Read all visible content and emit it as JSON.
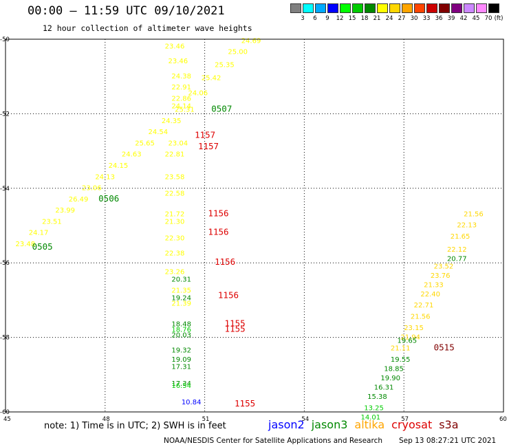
{
  "header": {
    "title": "00:00 – 11:59 UTC 09/10/2021",
    "subtitle": "12 hour collection of altimeter wave heights"
  },
  "colorbar": {
    "unit": "(ft)",
    "swatches": [
      "#808080",
      "#00ffff",
      "#00aaff",
      "#0000ff",
      "#00ff00",
      "#00cc00",
      "#008800",
      "#ffff00",
      "#ffd700",
      "#ffa500",
      "#ff4500",
      "#cc0000",
      "#800000",
      "#800080",
      "#cc88ff",
      "#ff88ff",
      "#000000"
    ],
    "labels": [
      "3",
      "6",
      "9",
      "12",
      "15",
      "18",
      "21",
      "24",
      "27",
      "30",
      "33",
      "36",
      "39",
      "42",
      "45",
      "70"
    ]
  },
  "map": {
    "lon_range": [
      45,
      60
    ],
    "lat_range": [
      -60,
      -50
    ],
    "lon_ticks": [
      "45",
      "48",
      "51",
      "54",
      "57",
      "60"
    ],
    "lat_ticks": [
      "-50",
      "-52",
      "-54",
      "-56",
      "-58",
      "-60"
    ]
  },
  "tracks": [
    {
      "color": "#ffff00",
      "points": [
        [
          45.3,
          -55.55,
          "23.48"
        ],
        [
          45.7,
          -55.25,
          "24.17"
        ],
        [
          46.1,
          -54.95,
          "23.51"
        ],
        [
          46.5,
          -54.65,
          "23.99"
        ],
        [
          46.9,
          -54.35,
          "26.49"
        ],
        [
          47.3,
          -54.05,
          "23.06"
        ],
        [
          47.7,
          -53.75,
          "24.13"
        ],
        [
          48.1,
          -53.45,
          "24.15"
        ],
        [
          48.5,
          -53.15,
          "24.63"
        ],
        [
          48.9,
          -52.85,
          "25.65"
        ],
        [
          49.3,
          -52.55,
          "24.54"
        ],
        [
          49.7,
          -52.25,
          "24.35"
        ],
        [
          50.1,
          -51.95,
          "25.31"
        ],
        [
          50.5,
          -51.5,
          "24.06"
        ],
        [
          50.9,
          -51.1,
          "25.42"
        ],
        [
          51.3,
          -50.75,
          "25.35"
        ],
        [
          51.7,
          -50.4,
          "25.00"
        ],
        [
          52.1,
          -50.1,
          "24.69"
        ]
      ]
    },
    {
      "color": "#ffff00",
      "points": [
        [
          49.8,
          -50.25,
          "23.46"
        ],
        [
          49.9,
          -50.65,
          "23.46"
        ],
        [
          50.0,
          -51.05,
          "24.38"
        ],
        [
          50.0,
          -51.35,
          "22.91"
        ],
        [
          50.0,
          -51.65,
          "22.86"
        ],
        [
          50.0,
          -51.85,
          "24.14"
        ],
        [
          49.9,
          -52.85,
          "23.04"
        ],
        [
          49.8,
          -53.15,
          "22.81"
        ]
      ]
    },
    {
      "color": "#ffff00",
      "points": [
        [
          49.8,
          -53.75,
          "23.58"
        ],
        [
          49.8,
          -54.2,
          "22.58"
        ],
        [
          49.8,
          -54.75,
          "21.72"
        ],
        [
          49.8,
          -54.95,
          "21.30"
        ],
        [
          49.8,
          -55.4,
          "22.30"
        ],
        [
          49.8,
          -55.8,
          "22.38"
        ],
        [
          49.8,
          -56.3,
          "23.26"
        ]
      ]
    },
    {
      "color": "#ffff00",
      "points": [
        [
          50.0,
          -56.8,
          "21.35"
        ],
        [
          50.0,
          -57.15,
          "21.39"
        ]
      ]
    },
    {
      "color": "#008800",
      "points": [
        [
          50.0,
          -56.5,
          "20.31"
        ],
        [
          50.0,
          -57.0,
          "19.24"
        ],
        [
          50.0,
          -57.7,
          "18.48"
        ],
        [
          50.0,
          -58.0,
          "20.03"
        ],
        [
          50.0,
          -58.4,
          "19.32"
        ],
        [
          50.0,
          -58.65,
          "19.09"
        ],
        [
          50.0,
          -58.85,
          "17.31"
        ],
        [
          50.0,
          -59.3,
          "17.34"
        ]
      ]
    },
    {
      "color": "#00cc00",
      "points": [
        [
          50.0,
          -59.35,
          "16.54"
        ],
        [
          50.0,
          -57.85,
          "18.76"
        ]
      ]
    },
    {
      "color": "#0000ff",
      "points": [
        [
          50.3,
          -59.8,
          "10.84"
        ]
      ]
    },
    {
      "color": "#ffd700",
      "points": [
        [
          58.8,
          -54.75,
          "21.56"
        ],
        [
          58.6,
          -55.05,
          "22.13"
        ],
        [
          58.4,
          -55.35,
          "21.65"
        ],
        [
          58.3,
          -55.7,
          "22.12"
        ],
        [
          57.9,
          -56.15,
          "23.52"
        ],
        [
          57.8,
          -56.4,
          "23.76"
        ],
        [
          57.6,
          -56.65,
          "21.33"
        ],
        [
          57.5,
          -56.9,
          "22.40"
        ],
        [
          57.3,
          -57.2,
          "22.71"
        ],
        [
          57.2,
          -57.5,
          "21.56"
        ],
        [
          57.0,
          -57.8,
          "23.15"
        ],
        [
          56.9,
          -58.05,
          "21.94"
        ],
        [
          56.6,
          -58.35,
          "21.11"
        ]
      ]
    },
    {
      "color": "#008800",
      "points": [
        [
          58.3,
          -55.95,
          "20.77"
        ],
        [
          56.8,
          -58.15,
          "19.65"
        ],
        [
          56.6,
          -58.65,
          "19.55"
        ],
        [
          56.4,
          -58.9,
          "18.85"
        ],
        [
          56.3,
          -59.15,
          "19.90"
        ],
        [
          56.1,
          -59.4,
          "16.31"
        ],
        [
          55.9,
          -59.65,
          "15.38"
        ]
      ]
    },
    {
      "color": "#00cc00",
      "points": [
        [
          55.8,
          -59.95,
          "13.25"
        ],
        [
          55.7,
          -60.2,
          "14.01"
        ]
      ]
    }
  ],
  "pass_labels": [
    {
      "text": "0505",
      "lon": 45.8,
      "lat": -55.65,
      "color": "#008800"
    },
    {
      "text": "0506",
      "lon": 47.8,
      "lat": -54.35,
      "color": "#008800"
    },
    {
      "text": "0507",
      "lon": 51.2,
      "lat": -51.95,
      "color": "#008800"
    },
    {
      "text": "1157",
      "lon": 50.7,
      "lat": -52.65,
      "color": "#dd0000"
    },
    {
      "text": "1157",
      "lon": 50.8,
      "lat": -52.95,
      "color": "#dd0000"
    },
    {
      "text": "1156",
      "lon": 51.1,
      "lat": -54.75,
      "color": "#dd0000"
    },
    {
      "text": "1156",
      "lon": 51.1,
      "lat": -55.25,
      "color": "#dd0000"
    },
    {
      "text": "1156",
      "lon": 51.3,
      "lat": -56.05,
      "color": "#dd0000"
    },
    {
      "text": "1156",
      "lon": 51.4,
      "lat": -56.95,
      "color": "#dd0000"
    },
    {
      "text": "1155",
      "lon": 51.6,
      "lat": -57.7,
      "color": "#dd0000"
    },
    {
      "text": "1155",
      "lon": 51.6,
      "lat": -57.85,
      "color": "#dd0000"
    },
    {
      "text": "1155",
      "lon": 51.9,
      "lat": -59.85,
      "color": "#dd0000"
    },
    {
      "text": "0515",
      "lon": 57.9,
      "lat": -58.35,
      "color": "#800000"
    }
  ],
  "footer": {
    "note": "note: 1) Time is in UTC; 2) SWH is in feet",
    "legend": [
      {
        "name": "jason2",
        "color": "#0000ff"
      },
      {
        "name": "jason3",
        "color": "#008800"
      },
      {
        "name": "altika",
        "color": "#ffa500"
      },
      {
        "name": "cryosat",
        "color": "#dd0000"
      },
      {
        "name": "s3a",
        "color": "#800000"
      }
    ],
    "credit": "NOAA/NESDIS Center for Satellite Applications and Research",
    "timestamp": "Sep 13 08:27:21 UTC 2021"
  }
}
